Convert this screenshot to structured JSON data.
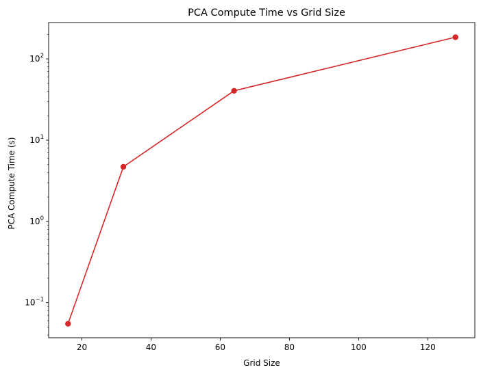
{
  "chart_data": {
    "type": "line",
    "title": "PCA Compute Time vs Grid Size",
    "xlabel": "Grid Size",
    "ylabel": "PCA Compute Time (s)",
    "yscale": "log",
    "xlim": [
      10.4,
      133.6
    ],
    "ylim": [
      0.037,
      280
    ],
    "x_ticks": [
      20,
      40,
      60,
      80,
      100,
      120
    ],
    "y_ticks": [
      {
        "value": 0.1,
        "base": "10",
        "exp": "−1"
      },
      {
        "value": 1,
        "base": "10",
        "exp": "0"
      },
      {
        "value": 10,
        "base": "10",
        "exp": "1"
      },
      {
        "value": 100,
        "base": "10",
        "exp": "2"
      }
    ],
    "grid": false,
    "series": [
      {
        "color": "#d62728",
        "marker": "circle",
        "x": [
          16,
          32,
          64,
          128
        ],
        "y": [
          0.055,
          4.7,
          40.5,
          185
        ]
      }
    ]
  }
}
